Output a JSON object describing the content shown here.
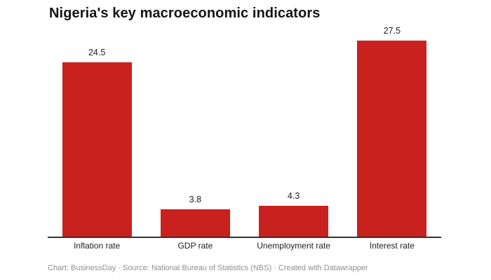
{
  "title": "Nigeria's key macroeconomic indicators",
  "footer": "Chart: BusinessDay · Source: National Bureau of Statistics (NBS) · Created with Datawrapper",
  "chart_data": {
    "type": "bar",
    "title": "Nigeria's key macroeconomic indicators",
    "categories": [
      "Inflation rate",
      "GDP rate",
      "Unemployment rate",
      "Interest rate"
    ],
    "values": [
      24.5,
      3.8,
      4.3,
      27.5
    ],
    "value_labels": [
      "24.5",
      "3.8",
      "4.3",
      "27.5"
    ],
    "xlabel": "",
    "ylabel": "",
    "ylim": [
      0,
      27.5
    ],
    "grid": false,
    "legend": false,
    "orientation": "vertical",
    "bar_color": "#c9211e",
    "axis_line_color": "#333333",
    "value_label_color": "#1d1d1d",
    "category_label_color": "#222222",
    "footer_color": "#8f8f8f",
    "attribution": {
      "chart_by": "BusinessDay",
      "source": "National Bureau of Statistics (NBS)",
      "tool": "Datawrapper"
    }
  }
}
